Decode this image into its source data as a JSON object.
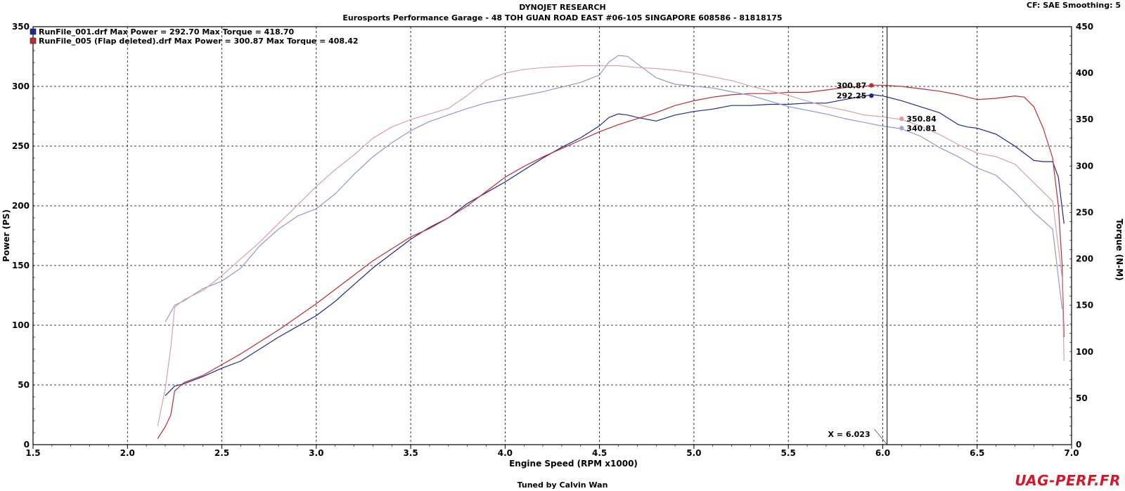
{
  "header": {
    "title": "DYNOJET RESEARCH",
    "subtitle": "Eurosports Performance Garage - 48 TOH GUAN ROAD EAST #06-105 SINGAPORE 608586 - 81818175",
    "correction": "CF: SAE  Smoothing: 5",
    "footer": "Tuned by Calvin Wan",
    "watermark": "UAG-PERF.FR"
  },
  "legend": {
    "items": [
      {
        "label": "RunFile_001.drf Max Power = 292.70     Max Torque = 418.70",
        "color": "#1c2a8f"
      },
      {
        "label": "RunFile_005 (Flap deleted).drf Max Power = 300.87     Max Torque = 408.42",
        "color": "#c22a32"
      }
    ]
  },
  "cursor": {
    "x": 6.023,
    "label": "X = 6.023"
  },
  "chart_data": {
    "type": "line",
    "xlabel": "Engine Speed (RPM x1000)",
    "ylabel": "Power (PS)",
    "y2label": "Torque (N-M)",
    "xlim": [
      1.5,
      7.0
    ],
    "ylim": [
      0,
      350
    ],
    "y2lim": [
      0,
      450
    ],
    "xticks": [
      "1.5",
      "2.0",
      "2.5",
      "3.0",
      "3.5",
      "4.0",
      "4.5",
      "5.0",
      "5.5",
      "6.0",
      "6.5",
      "7.0"
    ],
    "yticks": [
      "0",
      "50",
      "100",
      "150",
      "200",
      "250",
      "300",
      "350"
    ],
    "y2ticks": [
      "0",
      "50",
      "100",
      "150",
      "200",
      "250",
      "300",
      "350",
      "400",
      "450"
    ],
    "grid": true,
    "legend_position": "top-left",
    "series": [
      {
        "name": "RunFile_001.drf",
        "kind": "power",
        "axis": "left",
        "color": "#1c2a8f",
        "x": [
          2.2,
          2.25,
          2.3,
          2.4,
          2.5,
          2.6,
          2.7,
          2.8,
          2.9,
          3.0,
          3.1,
          3.2,
          3.3,
          3.4,
          3.5,
          3.6,
          3.7,
          3.8,
          3.9,
          4.0,
          4.1,
          4.2,
          4.3,
          4.4,
          4.5,
          4.55,
          4.6,
          4.65,
          4.7,
          4.8,
          4.9,
          5.0,
          5.1,
          5.2,
          5.3,
          5.4,
          5.5,
          5.6,
          5.7,
          5.8,
          5.9,
          5.95,
          6.0,
          6.1,
          6.2,
          6.3,
          6.4,
          6.45,
          6.5,
          6.6,
          6.7,
          6.8,
          6.85,
          6.9,
          6.93,
          6.96
        ],
        "y": [
          41,
          49,
          51,
          57,
          64,
          70,
          80,
          90,
          99,
          108,
          120,
          134,
          148,
          160,
          172,
          182,
          190,
          202,
          211,
          220,
          230,
          240,
          249,
          257,
          267,
          274,
          277,
          276,
          274,
          271,
          276,
          279,
          281,
          284,
          284,
          285,
          285,
          286,
          286,
          289,
          292,
          293,
          292,
          288,
          283,
          278,
          268,
          266,
          265,
          260,
          250,
          238,
          237,
          237,
          224,
          185
        ]
      },
      {
        "name": "RunFile_005 (Flap deleted).drf",
        "kind": "power",
        "axis": "left",
        "color": "#c22a32",
        "x": [
          2.16,
          2.2,
          2.23,
          2.25,
          2.3,
          2.4,
          2.5,
          2.6,
          2.7,
          2.8,
          2.9,
          3.0,
          3.1,
          3.2,
          3.3,
          3.4,
          3.5,
          3.6,
          3.7,
          3.8,
          3.9,
          4.0,
          4.1,
          4.2,
          4.3,
          4.4,
          4.5,
          4.6,
          4.7,
          4.8,
          4.9,
          5.0,
          5.1,
          5.2,
          5.3,
          5.4,
          5.5,
          5.6,
          5.7,
          5.8,
          5.9,
          5.95,
          6.0,
          6.1,
          6.2,
          6.3,
          6.4,
          6.5,
          6.6,
          6.7,
          6.75,
          6.8,
          6.85,
          6.9,
          6.93,
          6.95,
          6.96
        ],
        "y": [
          5,
          15,
          25,
          45,
          52,
          58,
          67,
          76,
          86,
          96,
          107,
          118,
          130,
          142,
          154,
          164,
          174,
          181,
          190,
          200,
          212,
          224,
          233,
          241,
          248,
          255,
          262,
          268,
          273,
          278,
          284,
          288,
          291,
          293,
          294,
          294,
          295,
          295,
          297,
          299,
          300,
          301,
          301,
          300,
          298,
          296,
          293,
          289,
          290,
          292,
          291,
          283,
          265,
          240,
          200,
          150,
          90
        ]
      },
      {
        "name": "RunFile_001.drf",
        "kind": "torque",
        "axis": "right",
        "color": "#8f98cf",
        "x": [
          2.2,
          2.25,
          2.3,
          2.4,
          2.5,
          2.6,
          2.7,
          2.8,
          2.9,
          3.0,
          3.1,
          3.2,
          3.3,
          3.4,
          3.5,
          3.6,
          3.7,
          3.8,
          3.9,
          4.0,
          4.1,
          4.2,
          4.3,
          4.4,
          4.5,
          4.55,
          4.6,
          4.65,
          4.7,
          4.8,
          4.9,
          5.0,
          5.1,
          5.2,
          5.3,
          5.4,
          5.5,
          5.6,
          5.7,
          5.8,
          5.9,
          6.0,
          6.1,
          6.2,
          6.3,
          6.4,
          6.5,
          6.6,
          6.7,
          6.8,
          6.9,
          6.95
        ],
        "y": [
          132,
          150,
          155,
          168,
          176,
          190,
          214,
          232,
          246,
          254,
          270,
          291,
          310,
          325,
          338,
          348,
          355,
          362,
          368,
          372,
          376,
          380,
          385,
          390,
          398,
          412,
          419,
          418,
          410,
          395,
          388,
          386,
          384,
          380,
          376,
          370,
          364,
          360,
          356,
          351,
          347,
          343,
          340,
          332,
          320,
          310,
          298,
          290,
          272,
          250,
          232,
          146
        ]
      },
      {
        "name": "RunFile_005 (Flap deleted).drf",
        "kind": "torque",
        "axis": "right",
        "color": "#dba0a4",
        "x": [
          2.16,
          2.2,
          2.23,
          2.25,
          2.3,
          2.4,
          2.5,
          2.6,
          2.7,
          2.8,
          2.9,
          3.0,
          3.1,
          3.2,
          3.3,
          3.4,
          3.5,
          3.6,
          3.7,
          3.8,
          3.9,
          4.0,
          4.1,
          4.2,
          4.3,
          4.4,
          4.5,
          4.6,
          4.7,
          4.8,
          4.9,
          5.0,
          5.1,
          5.2,
          5.3,
          5.4,
          5.5,
          5.6,
          5.7,
          5.8,
          5.9,
          6.0,
          6.1,
          6.2,
          6.3,
          6.4,
          6.5,
          6.6,
          6.7,
          6.8,
          6.9,
          6.95,
          6.96
        ],
        "y": [
          20,
          60,
          105,
          148,
          156,
          166,
          182,
          200,
          218,
          238,
          258,
          278,
          296,
          312,
          330,
          342,
          350,
          356,
          362,
          376,
          392,
          400,
          404,
          406,
          407,
          408,
          408,
          408,
          406,
          405,
          403,
          400,
          396,
          392,
          386,
          381,
          376,
          370,
          364,
          360,
          355,
          353,
          350,
          343,
          334,
          323,
          314,
          310,
          302,
          282,
          262,
          180,
          90
        ]
      }
    ],
    "markers": [
      {
        "x": 5.94,
        "y": 300.87,
        "axis": "left",
        "label": "300.87",
        "color": "#c22a32",
        "side": "left"
      },
      {
        "x": 5.94,
        "y": 292.25,
        "axis": "left",
        "label": "292.25",
        "color": "#1c2a8f",
        "side": "left"
      },
      {
        "x": 6.1,
        "y": 350.84,
        "axis": "right",
        "label": "350.84",
        "color": "#e59a9e",
        "side": "right"
      },
      {
        "x": 6.1,
        "y": 340.81,
        "axis": "right",
        "label": "340.81",
        "color": "#9ea5db",
        "side": "right"
      }
    ]
  }
}
